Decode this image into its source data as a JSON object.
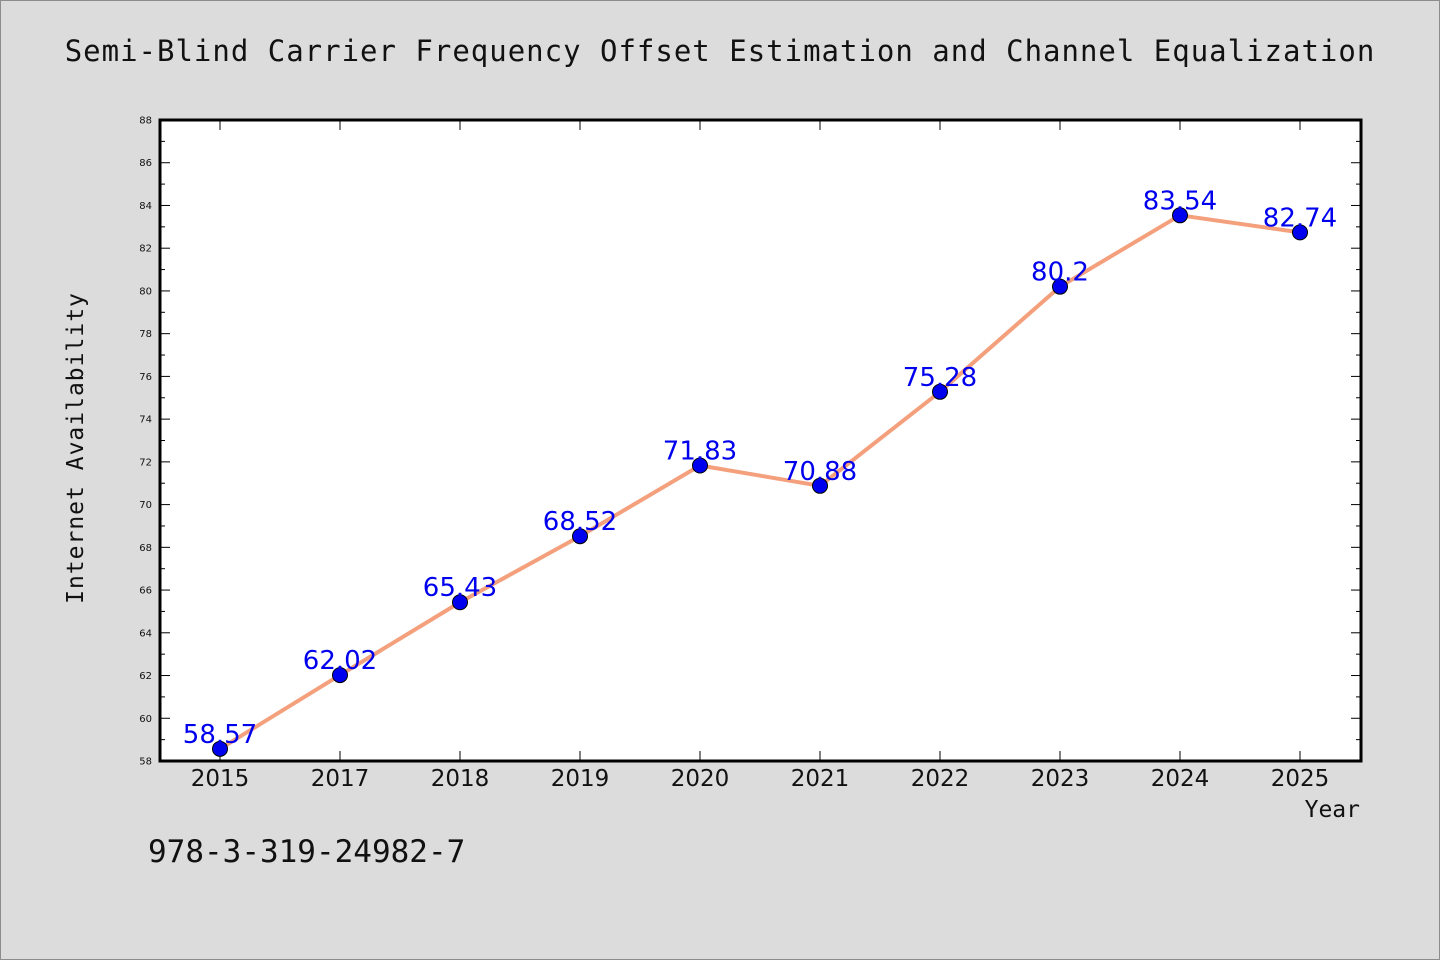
{
  "chart_data": {
    "type": "line",
    "title": "Semi-Blind Carrier Frequency Offset Estimation and Channel Equalization",
    "xlabel": "Year",
    "ylabel": "Internet Availability",
    "categories": [
      "2015",
      "2017",
      "2018",
      "2019",
      "2020",
      "2021",
      "2022",
      "2023",
      "2024",
      "2025"
    ],
    "series": [
      {
        "values": [
          58.57,
          62.02,
          65.43,
          68.52,
          71.83,
          70.88,
          75.28,
          80.2,
          83.54,
          82.74
        ],
        "labels": [
          "58.57",
          "62.02",
          "65.43",
          "68.52",
          "71.83",
          "70.88",
          "75.28",
          "80.2",
          "83.54",
          "82.74"
        ]
      }
    ],
    "ylim": [
      58,
      88
    ],
    "yticks": [
      "58",
      "60",
      "62",
      "64",
      "66",
      "68",
      "70",
      "72",
      "74",
      "76",
      "78",
      "80",
      "82",
      "84",
      "86",
      "88"
    ],
    "line_color": "#f4a07c",
    "marker_color": "#0000ee",
    "label_color": "#0000ee",
    "grid": false
  },
  "footer_text": "978-3-319-24982-7"
}
